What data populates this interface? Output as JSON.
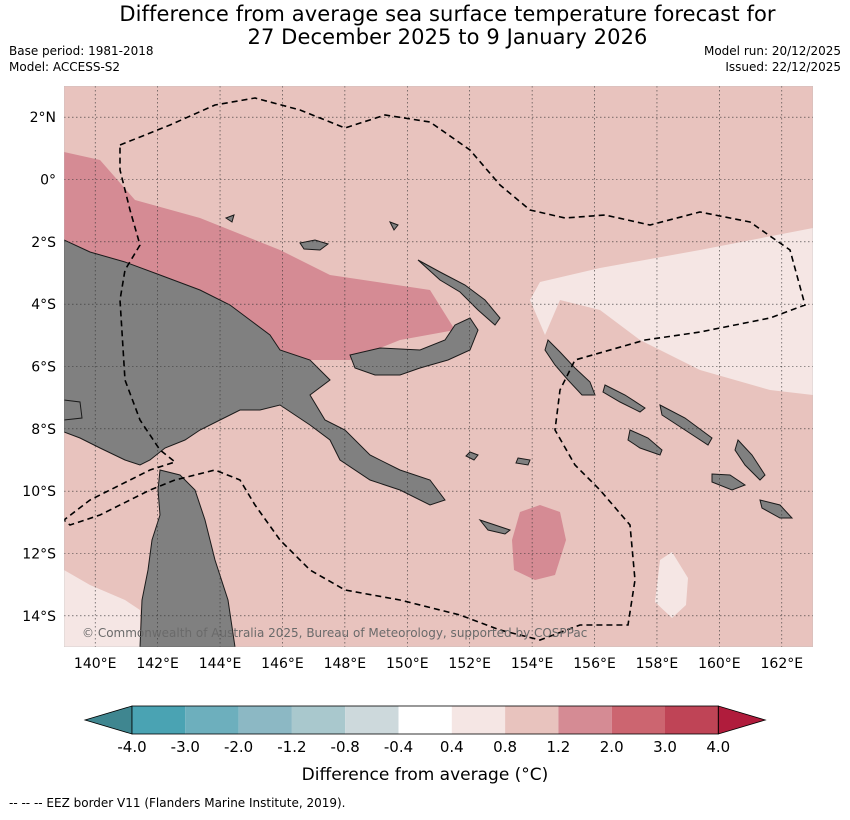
{
  "title": {
    "line1": "Difference from average sea surface temperature forecast for",
    "line2": "27 December 2025 to 9 January 2026"
  },
  "meta_left": {
    "base_period": "Base period: 1981-2018",
    "model": "Model: ACCESS-S2"
  },
  "meta_right": {
    "model_run": "Model run: 20/12/2025",
    "issued": "Issued: 22/12/2025"
  },
  "map": {
    "lat_labels": [
      "2°N",
      "0°",
      "2°S",
      "4°S",
      "6°S",
      "8°S",
      "10°S",
      "12°S",
      "14°S"
    ],
    "lat_values": [
      2,
      0,
      -2,
      -4,
      -6,
      -8,
      -10,
      -12,
      -14
    ],
    "lon_labels": [
      "140°E",
      "142°E",
      "144°E",
      "146°E",
      "148°E",
      "150°E",
      "152°E",
      "154°E",
      "156°E",
      "158°E",
      "160°E",
      "162°E"
    ],
    "lon_values": [
      140,
      142,
      144,
      146,
      148,
      150,
      152,
      154,
      156,
      158,
      160,
      162
    ],
    "extent": {
      "lon_min": 139,
      "lon_max": 163,
      "lat_min": -15,
      "lat_max": 3
    },
    "copyright": "© Commonwealth of Australia 2025, Bureau of Meteorology, supported by COSPPac",
    "land_color": "#808080",
    "grid": true
  },
  "colorbar": {
    "ticks": [
      "-4.0",
      "-3.0",
      "-2.0",
      "-1.2",
      "-0.8",
      "-0.4",
      "0.4",
      "0.8",
      "1.2",
      "2.0",
      "3.0",
      "4.0"
    ],
    "colors": [
      "#3f8690",
      "#4aa3b3",
      "#6dafbd",
      "#8cb8c4",
      "#a9c8cd",
      "#cdd9dc",
      "#ffffff",
      "#f5e6e4",
      "#e8c3be",
      "#d58b94",
      "#cc6570",
      "#bf4456",
      "#b01c3c"
    ],
    "label": "Difference from average (°C)"
  },
  "footer": "--  --  -- EEZ border V11 (Flanders Marine Institute, 2019)."
}
